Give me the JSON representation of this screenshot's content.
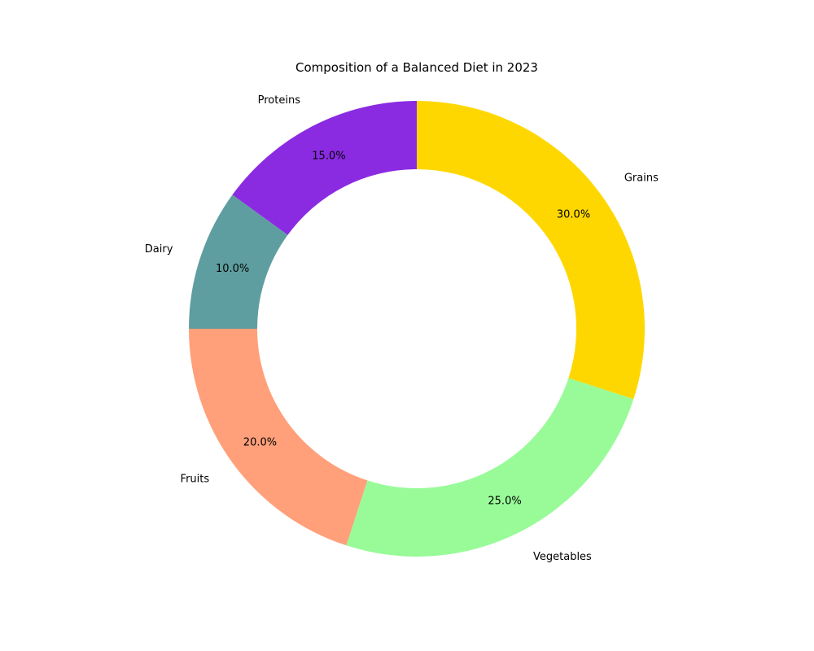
{
  "chart_data": {
    "type": "pie",
    "style": "donut",
    "title": "Composition of a Balanced Diet in 2023",
    "categories": [
      "Grains",
      "Proteins",
      "Dairy",
      "Fruits",
      "Vegetables"
    ],
    "values": [
      30,
      15,
      10,
      20,
      25
    ],
    "value_labels": [
      "30.0%",
      "15.0%",
      "10.0%",
      "20.0%",
      "25.0%"
    ],
    "colors": [
      "#FFD700",
      "#8A2BE2",
      "#5F9EA0",
      "#FFA07A",
      "#98FB98"
    ],
    "start_angle_deg": -18,
    "direction": "counterclockwise"
  }
}
